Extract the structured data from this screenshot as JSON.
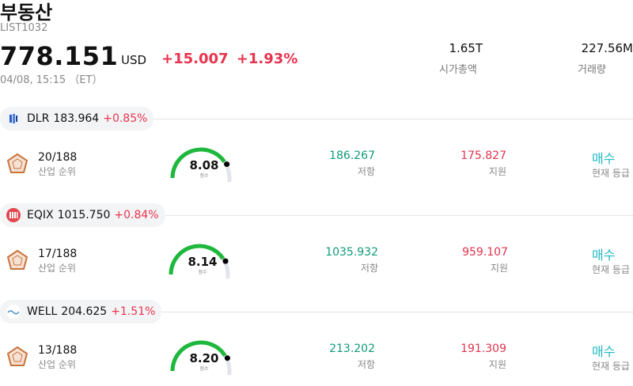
{
  "header": {
    "title": "부동산",
    "ticker": "LIST1032",
    "price": "778.151",
    "currency": "USD",
    "change": "+15.007",
    "change_pct": "+1.93%",
    "timestamp": "04/08, 15:15 （ET）"
  },
  "stats": [
    {
      "value": "1.65T",
      "label": "시가총액"
    },
    {
      "value": "227.56M",
      "label": "거래량"
    }
  ],
  "colors": {
    "up": "#e8344e",
    "resistance": "#109a7c",
    "support": "#e0334c",
    "rating": "#22b8c3",
    "gauge": "#1db83c"
  },
  "stocks": [
    {
      "symbol": "DLR",
      "price": "183.964",
      "change_pct": "+0.85%",
      "logo_icon": "dlr-logo-icon",
      "rank": "20/188",
      "rank_label": "산업 순위",
      "score": "8.08",
      "score_fraction": 0.808,
      "score_label": "점수",
      "resistance": "186.267",
      "resistance_label": "저항",
      "support": "175.827",
      "support_label": "지원",
      "rating": "매수",
      "rating_label": "현재 등급"
    },
    {
      "symbol": "EQIX",
      "price": "1015.750",
      "change_pct": "+0.84%",
      "logo_icon": "eqix-logo-icon",
      "rank": "17/188",
      "rank_label": "산업 순위",
      "score": "8.14",
      "score_fraction": 0.814,
      "score_label": "점수",
      "resistance": "1035.932",
      "resistance_label": "저항",
      "support": "959.107",
      "support_label": "지원",
      "rating": "매수",
      "rating_label": "현재 등급"
    },
    {
      "symbol": "WELL",
      "price": "204.625",
      "change_pct": "+1.51%",
      "logo_icon": "well-logo-icon",
      "rank": "13/188",
      "rank_label": "산업 순위",
      "score": "8.20",
      "score_fraction": 0.82,
      "score_label": "점수",
      "resistance": "213.202",
      "resistance_label": "저항",
      "support": "191.309",
      "support_label": "지원",
      "rating": "매수",
      "rating_label": "현재 등급"
    }
  ]
}
